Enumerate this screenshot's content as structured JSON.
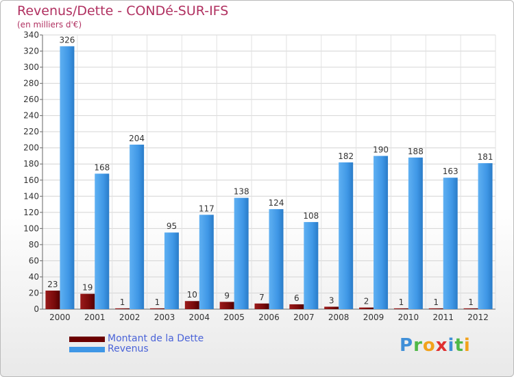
{
  "header": {
    "title": "Revenus/Dette - CONDé-SUR-IFS",
    "subtitle": "(en milliers d'€)"
  },
  "chart_data": {
    "type": "bar",
    "categories": [
      "2000",
      "2001",
      "2002",
      "2003",
      "2004",
      "2005",
      "2006",
      "2007",
      "2008",
      "2009",
      "2010",
      "2011",
      "2012"
    ],
    "series": [
      {
        "name": "Montant de la Dette",
        "color": "#7a0b0b",
        "values": [
          23,
          19,
          1,
          1,
          10,
          9,
          7,
          6,
          3,
          2,
          1,
          1,
          1
        ]
      },
      {
        "name": "Revenus",
        "color": "#3f97e6",
        "values": [
          326,
          168,
          204,
          95,
          117,
          138,
          124,
          108,
          182,
          190,
          188,
          163,
          181
        ]
      }
    ],
    "ylim": [
      0,
      340
    ],
    "ytick_step": 20,
    "grid": true,
    "legend": "bottom-left"
  },
  "legend": {
    "items": [
      {
        "label": "Montant de la Dette",
        "color": "#6b0000"
      },
      {
        "label": "Revenus",
        "color": "#3f97e6"
      }
    ]
  },
  "logo": {
    "letters": [
      "P",
      "r",
      "o",
      "x",
      "i",
      "t",
      "i"
    ]
  }
}
